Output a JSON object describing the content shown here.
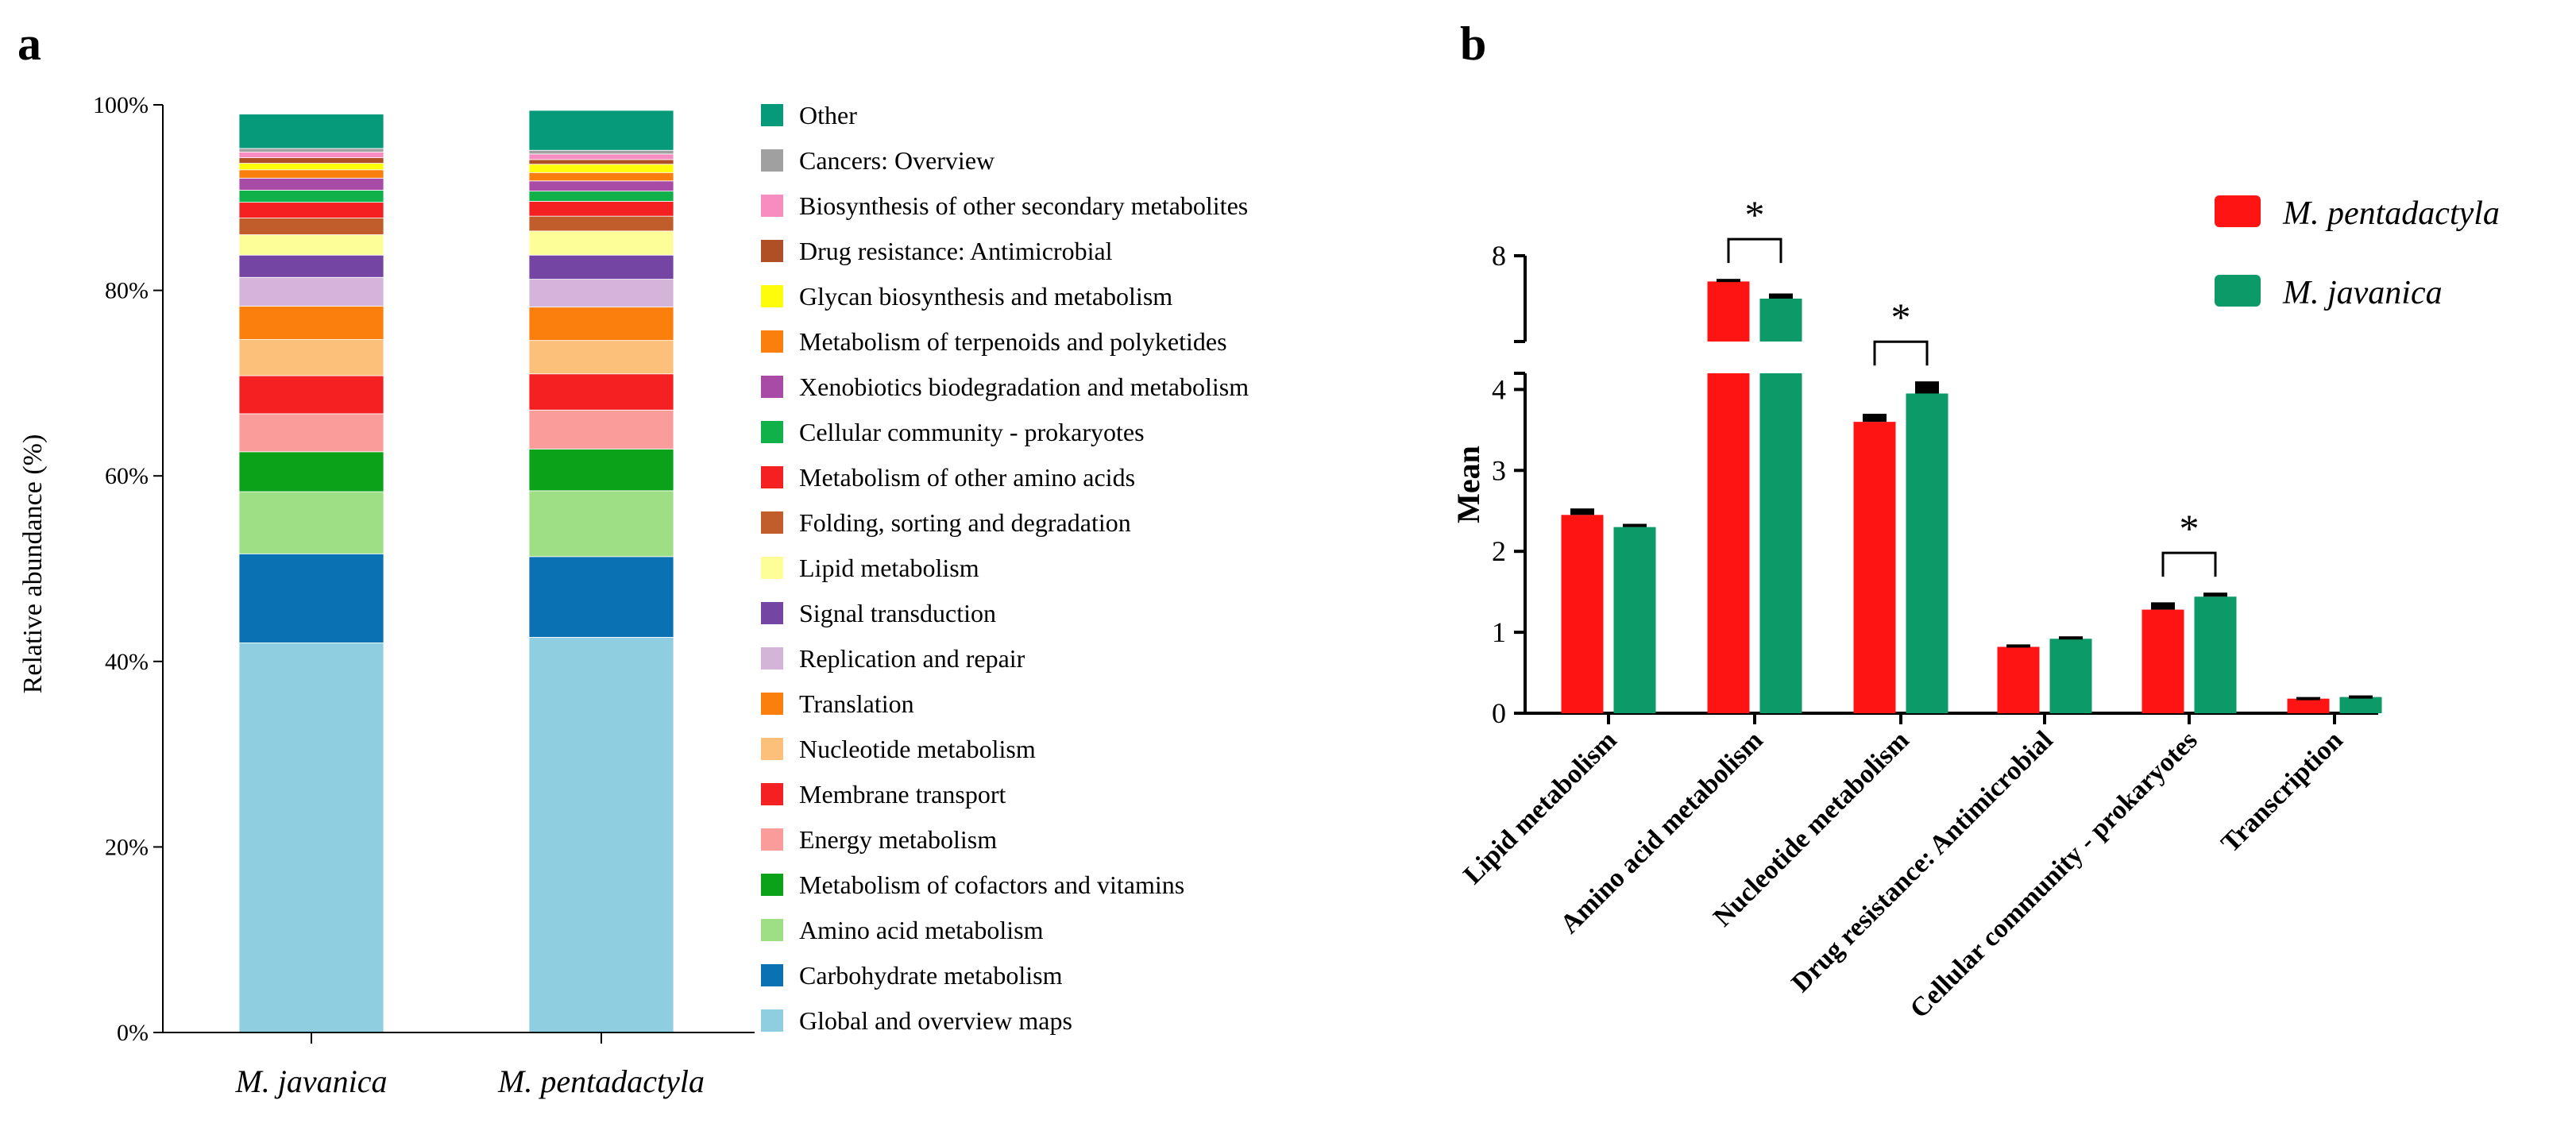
{
  "panel_a_label": "a",
  "panel_b_label": "b",
  "chart_data": [
    {
      "type": "bar",
      "stacked": true,
      "ylabel": "Relative abundance (%)",
      "ylim": [
        0,
        100
      ],
      "yticks": [
        "0%",
        "20%",
        "40%",
        "60%",
        "80%",
        "100%"
      ],
      "categories": [
        "M. javanica",
        "M. pentadactyla"
      ],
      "series": [
        {
          "name": "Global and overview maps",
          "color": "#8fcde1",
          "values": [
            42.0,
            42.6
          ]
        },
        {
          "name": "Carbohydrate metabolism",
          "color": "#0a72b2",
          "values": [
            9.6,
            8.7
          ]
        },
        {
          "name": "Amino acid metabolism",
          "color": "#9edf86",
          "values": [
            6.7,
            7.1
          ]
        },
        {
          "name": "Metabolism of cofactors and vitamins",
          "color": "#0ba119",
          "values": [
            4.3,
            4.5
          ]
        },
        {
          "name": "Energy metabolism",
          "color": "#f99c9a",
          "values": [
            4.1,
            4.2
          ]
        },
        {
          "name": "Membrane transport",
          "color": "#f42022",
          "values": [
            4.1,
            3.9
          ]
        },
        {
          "name": "Nucleotide metabolism",
          "color": "#fdc07a",
          "values": [
            3.9,
            3.6
          ]
        },
        {
          "name": "Translation",
          "color": "#fb7f0d",
          "values": [
            3.6,
            3.6
          ]
        },
        {
          "name": "Replication and repair",
          "color": "#d5b4d9",
          "values": [
            3.1,
            3.0
          ]
        },
        {
          "name": "Signal transduction",
          "color": "#7445a2",
          "values": [
            2.4,
            2.6
          ]
        },
        {
          "name": "Lipid metabolism",
          "color": "#fefe99",
          "values": [
            2.2,
            2.6
          ]
        },
        {
          "name": "Folding, sorting and degradation",
          "color": "#c05d2a",
          "values": [
            1.8,
            1.6
          ]
        },
        {
          "name": "Metabolism of other amino acids",
          "color": "#f42022",
          "values": [
            1.7,
            1.6
          ]
        },
        {
          "name": "Cellular community - prokaryotes",
          "color": "#11b14a",
          "values": [
            1.3,
            1.1
          ]
        },
        {
          "name": "Xenobiotics biodegradation and metabolism",
          "color": "#a84ba6",
          "values": [
            1.3,
            1.1
          ]
        },
        {
          "name": "Metabolism of terpenoids and polyketides",
          "color": "#fb7f0d",
          "values": [
            0.9,
            0.9
          ]
        },
        {
          "name": "Glycan biosynthesis and metabolism",
          "color": "#fefc08",
          "values": [
            0.7,
            0.9
          ]
        },
        {
          "name": "Drug resistance: Antimicrobial",
          "color": "#b04e25",
          "values": [
            0.6,
            0.5
          ]
        },
        {
          "name": "Biosynthesis of other secondary metabolites",
          "color": "#f78cc0",
          "values": [
            0.6,
            0.6
          ]
        },
        {
          "name": "Cancers: Overview",
          "color": "#a0a0a0",
          "values": [
            0.4,
            0.4
          ]
        },
        {
          "name": "Other",
          "color": "#079a7a",
          "values": [
            3.7,
            4.3
          ]
        }
      ],
      "legend_order": [
        "Other",
        "Cancers: Overview",
        "Biosynthesis of other secondary metabolites",
        "Drug resistance: Antimicrobial",
        "Glycan biosynthesis and metabolism",
        "Metabolism of terpenoids and polyketides",
        "Xenobiotics biodegradation and metabolism",
        "Cellular community - prokaryotes",
        "Metabolism of other amino acids",
        "Folding, sorting and degradation",
        "Lipid metabolism",
        "Signal transduction",
        "Replication and repair",
        "Translation",
        "Nucleotide metabolism",
        "Membrane transport",
        "Energy metabolism",
        "Metabolism of cofactors and vitamins",
        "Amino acid metabolism",
        "Carbohydrate metabolism",
        "Global and overview maps"
      ]
    },
    {
      "type": "bar",
      "ylabel": "Mean",
      "broken_axis": {
        "lower": [
          0,
          4.2
        ],
        "upper": [
          7.0,
          8.0
        ]
      },
      "yticks_lower": [
        "0",
        "1",
        "2",
        "3",
        "4"
      ],
      "yticks_upper": [
        "8"
      ],
      "categories": [
        "Lipid metabolism",
        "Amino acid metabolism",
        "Nucleotide metabolism",
        "Drug resistance: Antimicrobial",
        "Cellular community - prokaryotes",
        "Transcription"
      ],
      "series": [
        {
          "name": "M. pentadactyla",
          "color": "#ff1414",
          "values": [
            2.45,
            7.7,
            3.6,
            0.82,
            1.28,
            0.18
          ],
          "errors": [
            0.08,
            0.03,
            0.1,
            0.03,
            0.09,
            0.02
          ]
        },
        {
          "name": "M. javanica",
          "color": "#0c9a68",
          "values": [
            2.3,
            7.5,
            3.95,
            0.92,
            1.44,
            0.2
          ],
          "errors": [
            0.04,
            0.06,
            0.15,
            0.03,
            0.05,
            0.02
          ]
        }
      ],
      "significance": [
        {
          "category_index": 1,
          "label": "*"
        },
        {
          "category_index": 2,
          "label": "*"
        },
        {
          "category_index": 4,
          "label": "*"
        }
      ]
    }
  ]
}
